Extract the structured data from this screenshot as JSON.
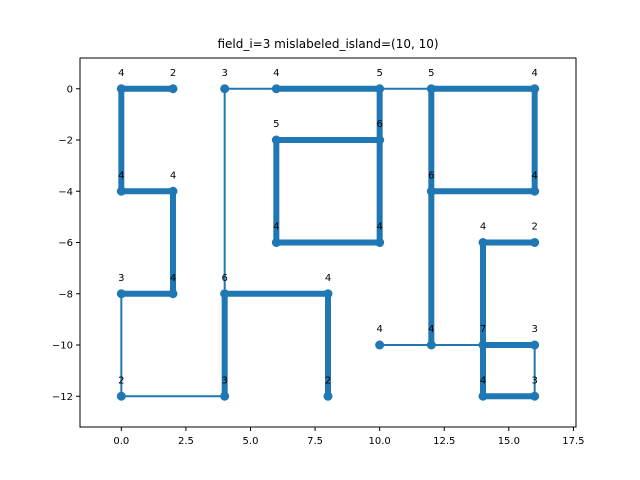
{
  "chart_data": {
    "type": "line",
    "title": "field_i=3 mislabeled_island=(10, 10)",
    "xlabel": "",
    "ylabel": "",
    "xlim": [
      -1.6,
      17.6
    ],
    "ylim": [
      -13.2,
      1.2
    ],
    "xticks": [
      0,
      2.5,
      5,
      7.5,
      10,
      12.5,
      15,
      17.5
    ],
    "xtick_labels": [
      "0.0",
      "2.5",
      "5.0",
      "7.5",
      "10.0",
      "12.5",
      "15.0",
      "17.5"
    ],
    "yticks": [
      0,
      -2,
      -4,
      -6,
      -8,
      -10,
      -12
    ],
    "ytick_labels": [
      "0",
      "−2",
      "−4",
      "−6",
      "−8",
      "−10",
      "−12"
    ],
    "grid": false,
    "color": "#1f77b4",
    "nodes": [
      {
        "x": 0,
        "y": 0,
        "label": "4"
      },
      {
        "x": 2,
        "y": 0,
        "label": "2"
      },
      {
        "x": 4,
        "y": 0,
        "label": "3"
      },
      {
        "x": 6,
        "y": 0,
        "label": "4"
      },
      {
        "x": 10,
        "y": 0,
        "label": "5"
      },
      {
        "x": 12,
        "y": 0,
        "label": "5"
      },
      {
        "x": 16,
        "y": 0,
        "label": "4"
      },
      {
        "x": 6,
        "y": -2,
        "label": "5"
      },
      {
        "x": 10,
        "y": -2,
        "label": "6"
      },
      {
        "x": 0,
        "y": -4,
        "label": "4"
      },
      {
        "x": 2,
        "y": -4,
        "label": "4"
      },
      {
        "x": 12,
        "y": -4,
        "label": "6"
      },
      {
        "x": 16,
        "y": -4,
        "label": "4"
      },
      {
        "x": 6,
        "y": -6,
        "label": "4"
      },
      {
        "x": 10,
        "y": -6,
        "label": "4"
      },
      {
        "x": 14,
        "y": -6,
        "label": "4"
      },
      {
        "x": 16,
        "y": -6,
        "label": "2"
      },
      {
        "x": 0,
        "y": -8,
        "label": "3"
      },
      {
        "x": 2,
        "y": -8,
        "label": "4"
      },
      {
        "x": 4,
        "y": -8,
        "label": "6"
      },
      {
        "x": 8,
        "y": -8,
        "label": "4"
      },
      {
        "x": 10,
        "y": -10,
        "label": "4"
      },
      {
        "x": 12,
        "y": -10,
        "label": "4"
      },
      {
        "x": 14,
        "y": -10,
        "label": "7"
      },
      {
        "x": 16,
        "y": -10,
        "label": "3"
      },
      {
        "x": 0,
        "y": -12,
        "label": "2"
      },
      {
        "x": 4,
        "y": -12,
        "label": "3"
      },
      {
        "x": 8,
        "y": -12,
        "label": "2"
      },
      {
        "x": 14,
        "y": -12,
        "label": "4"
      },
      {
        "x": 16,
        "y": -12,
        "label": "3"
      }
    ],
    "edges": [
      {
        "x1": 0,
        "y1": 0,
        "x2": 2,
        "y2": 0,
        "weight": 2
      },
      {
        "x1": 0,
        "y1": 0,
        "x2": 0,
        "y2": -4,
        "weight": 2
      },
      {
        "x1": 4,
        "y1": 0,
        "x2": 6,
        "y2": 0,
        "weight": 1
      },
      {
        "x1": 4,
        "y1": 0,
        "x2": 4,
        "y2": -8,
        "weight": 1
      },
      {
        "x1": 6,
        "y1": 0,
        "x2": 10,
        "y2": 0,
        "weight": 2
      },
      {
        "x1": 10,
        "y1": 0,
        "x2": 12,
        "y2": 0,
        "weight": 1
      },
      {
        "x1": 10,
        "y1": 0,
        "x2": 10,
        "y2": -2,
        "weight": 2
      },
      {
        "x1": 12,
        "y1": 0,
        "x2": 16,
        "y2": 0,
        "weight": 2
      },
      {
        "x1": 12,
        "y1": 0,
        "x2": 12,
        "y2": -4,
        "weight": 2
      },
      {
        "x1": 16,
        "y1": 0,
        "x2": 16,
        "y2": -4,
        "weight": 2
      },
      {
        "x1": 6,
        "y1": -2,
        "x2": 10,
        "y2": -2,
        "weight": 2
      },
      {
        "x1": 6,
        "y1": -2,
        "x2": 6,
        "y2": -6,
        "weight": 2
      },
      {
        "x1": 10,
        "y1": -2,
        "x2": 10,
        "y2": -6,
        "weight": 2
      },
      {
        "x1": 0,
        "y1": -4,
        "x2": 2,
        "y2": -4,
        "weight": 2
      },
      {
        "x1": 2,
        "y1": -4,
        "x2": 2,
        "y2": -8,
        "weight": 2
      },
      {
        "x1": 12,
        "y1": -4,
        "x2": 16,
        "y2": -4,
        "weight": 2
      },
      {
        "x1": 12,
        "y1": -4,
        "x2": 12,
        "y2": -10,
        "weight": 2
      },
      {
        "x1": 6,
        "y1": -6,
        "x2": 10,
        "y2": -6,
        "weight": 2
      },
      {
        "x1": 14,
        "y1": -6,
        "x2": 16,
        "y2": -6,
        "weight": 2
      },
      {
        "x1": 14,
        "y1": -6,
        "x2": 14,
        "y2": -10,
        "weight": 2
      },
      {
        "x1": 0,
        "y1": -8,
        "x2": 2,
        "y2": -8,
        "weight": 2
      },
      {
        "x1": 0,
        "y1": -8,
        "x2": 0,
        "y2": -12,
        "weight": 1
      },
      {
        "x1": 4,
        "y1": -8,
        "x2": 8,
        "y2": -8,
        "weight": 2
      },
      {
        "x1": 4,
        "y1": -8,
        "x2": 4,
        "y2": -12,
        "weight": 2
      },
      {
        "x1": 8,
        "y1": -8,
        "x2": 8,
        "y2": -12,
        "weight": 2
      },
      {
        "x1": 10,
        "y1": -10,
        "x2": 12,
        "y2": -10,
        "weight": 1
      },
      {
        "x1": 12,
        "y1": -10,
        "x2": 14,
        "y2": -10,
        "weight": 1
      },
      {
        "x1": 14,
        "y1": -10,
        "x2": 16,
        "y2": -10,
        "weight": 2
      },
      {
        "x1": 14,
        "y1": -10,
        "x2": 14,
        "y2": -12,
        "weight": 2
      },
      {
        "x1": 16,
        "y1": -10,
        "x2": 16,
        "y2": -12,
        "weight": 1
      },
      {
        "x1": 0,
        "y1": -12,
        "x2": 4,
        "y2": -12,
        "weight": 1
      },
      {
        "x1": 14,
        "y1": -12,
        "x2": 16,
        "y2": -12,
        "weight": 2
      }
    ]
  }
}
